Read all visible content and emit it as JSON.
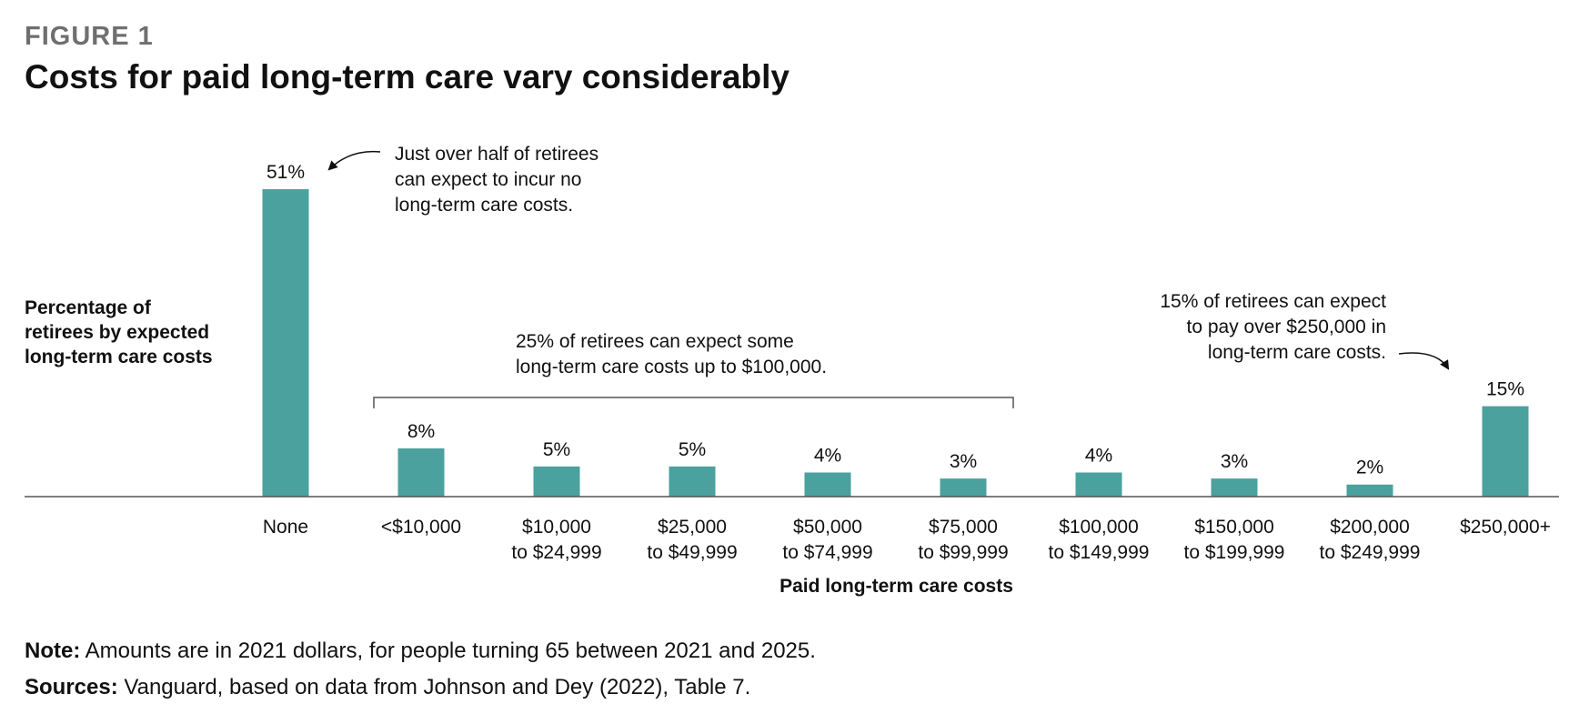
{
  "figure_label": "FIGURE 1",
  "title": "Costs for paid long-term care vary considerably",
  "ylabel_lines": [
    "Percentage of",
    "retirees by expected",
    "long-term care costs"
  ],
  "annotations": {
    "none": [
      "Just over half of retirees",
      "can expect to incur no",
      "long-term care costs."
    ],
    "mid": [
      "25% of retirees can expect some",
      "long-term care costs up to $100,000."
    ],
    "high": [
      "15% of retirees can expect",
      "to pay over $250,000 in",
      "long-term care costs."
    ]
  },
  "note": {
    "label": "Note:",
    "text": " Amounts are in 2021 dollars, for people turning 65 between 2021 and 2025."
  },
  "sources": {
    "label": "Sources:",
    "text": " Vanguard, based on data from Johnson and Dey (2022), Table 7."
  },
  "colors": {
    "bar": "#4aa19e",
    "axis": "#555555",
    "text": "#111111"
  },
  "chart_data": {
    "type": "bar",
    "title": "Costs for paid long-term care vary considerably",
    "xlabel": "Paid long-term care costs",
    "ylabel": "Percentage of retirees by expected long-term care costs",
    "categories": [
      [
        "None"
      ],
      [
        "<$10,000"
      ],
      [
        "$10,000",
        "to $24,999"
      ],
      [
        "$25,000",
        "to $49,999"
      ],
      [
        "$50,000",
        "to $74,999"
      ],
      [
        "$75,000",
        "to $99,999"
      ],
      [
        "$100,000",
        "to $149,999"
      ],
      [
        "$150,000",
        "to $199,999"
      ],
      [
        "$200,000",
        "to $249,999"
      ],
      [
        "$250,000+"
      ]
    ],
    "values": [
      51,
      8,
      5,
      5,
      4,
      3,
      4,
      3,
      2,
      15
    ],
    "value_suffix": "%",
    "ylim": [
      0,
      51
    ],
    "grid": false,
    "bracket_span": [
      "<$10,000",
      "$75,000 to $99,999"
    ]
  }
}
